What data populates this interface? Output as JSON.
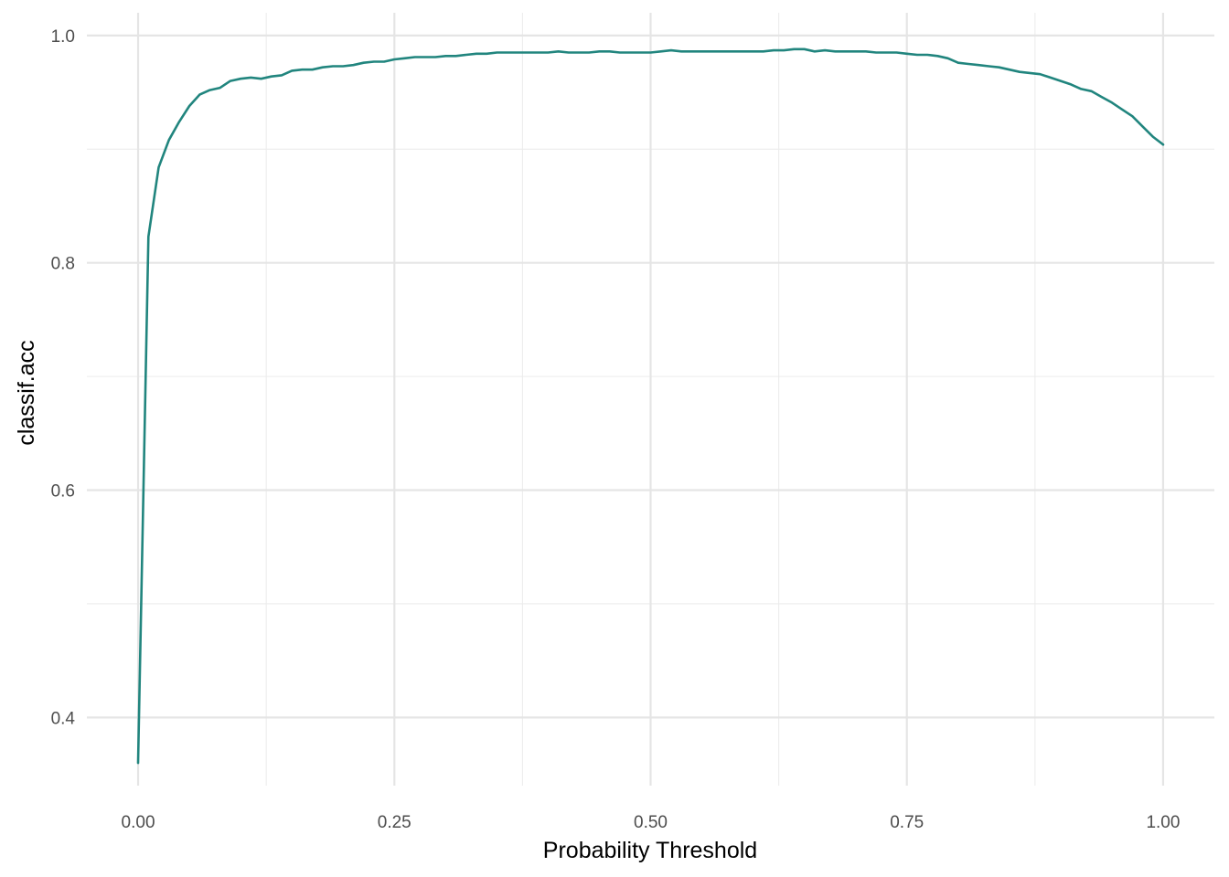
{
  "chart_data": {
    "type": "line",
    "xlabel": "Probability Threshold",
    "ylabel": "classif.acc",
    "xlim": [
      -0.05,
      1.05
    ],
    "ylim": [
      0.34,
      1.02
    ],
    "x_ticks": [
      0.0,
      0.25,
      0.5,
      0.75,
      1.0
    ],
    "x_tick_labels": [
      "0.00",
      "0.25",
      "0.50",
      "0.75",
      "1.00"
    ],
    "y_ticks": [
      0.4,
      0.6,
      0.8,
      1.0
    ],
    "y_tick_labels": [
      "0.4",
      "0.6",
      "0.8",
      "1.0"
    ],
    "grid": true,
    "line_color": "#21857e",
    "series": [
      {
        "x": [
          0.0,
          0.01,
          0.02,
          0.03,
          0.04,
          0.05,
          0.06,
          0.07,
          0.08,
          0.09,
          0.1,
          0.11,
          0.12,
          0.13,
          0.14,
          0.15,
          0.16,
          0.17,
          0.18,
          0.19,
          0.2,
          0.21,
          0.22,
          0.23,
          0.24,
          0.25,
          0.26,
          0.27,
          0.28,
          0.29,
          0.3,
          0.31,
          0.32,
          0.33,
          0.34,
          0.35,
          0.36,
          0.37,
          0.38,
          0.39,
          0.4,
          0.41,
          0.42,
          0.43,
          0.44,
          0.45,
          0.46,
          0.47,
          0.48,
          0.49,
          0.5,
          0.51,
          0.52,
          0.53,
          0.54,
          0.55,
          0.56,
          0.57,
          0.58,
          0.59,
          0.6,
          0.61,
          0.62,
          0.63,
          0.64,
          0.65,
          0.66,
          0.67,
          0.68,
          0.69,
          0.7,
          0.71,
          0.72,
          0.73,
          0.74,
          0.75,
          0.76,
          0.77,
          0.78,
          0.79,
          0.8,
          0.81,
          0.82,
          0.83,
          0.84,
          0.85,
          0.86,
          0.87,
          0.88,
          0.89,
          0.9,
          0.91,
          0.92,
          0.93,
          0.94,
          0.95,
          0.96,
          0.97,
          0.98,
          0.99,
          1.0
        ],
        "y": [
          0.36,
          0.823,
          0.884,
          0.908,
          0.924,
          0.938,
          0.948,
          0.952,
          0.954,
          0.96,
          0.962,
          0.963,
          0.962,
          0.964,
          0.965,
          0.969,
          0.97,
          0.97,
          0.972,
          0.973,
          0.973,
          0.974,
          0.976,
          0.977,
          0.977,
          0.979,
          0.98,
          0.981,
          0.981,
          0.981,
          0.982,
          0.982,
          0.983,
          0.984,
          0.984,
          0.985,
          0.985,
          0.985,
          0.985,
          0.985,
          0.985,
          0.986,
          0.985,
          0.985,
          0.985,
          0.986,
          0.986,
          0.985,
          0.985,
          0.985,
          0.985,
          0.986,
          0.987,
          0.986,
          0.986,
          0.986,
          0.986,
          0.986,
          0.986,
          0.986,
          0.986,
          0.986,
          0.987,
          0.987,
          0.988,
          0.988,
          0.986,
          0.987,
          0.986,
          0.986,
          0.986,
          0.986,
          0.985,
          0.985,
          0.985,
          0.984,
          0.983,
          0.983,
          0.982,
          0.98,
          0.976,
          0.975,
          0.974,
          0.973,
          0.972,
          0.97,
          0.968,
          0.967,
          0.966,
          0.963,
          0.96,
          0.957,
          0.953,
          0.951,
          0.946,
          0.941,
          0.935,
          0.929,
          0.92,
          0.911,
          0.904
        ]
      }
    ]
  }
}
